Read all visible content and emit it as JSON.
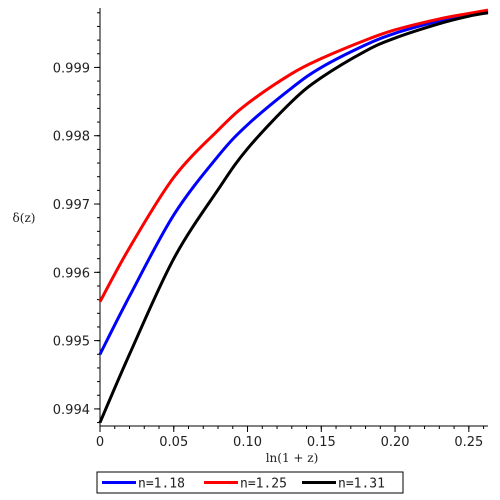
{
  "chart_data": {
    "type": "line",
    "xlabel": "ln(1 + z)",
    "ylabel": "δ(z)",
    "xlim": [
      0,
      0.263
    ],
    "ylim": [
      0.99375,
      0.99987
    ],
    "x_ticks": [
      0,
      0.05,
      0.1,
      0.15,
      0.2,
      0.25
    ],
    "x_tick_labels": [
      "0",
      "0.05",
      "0.10",
      "0.15",
      "0.20",
      "0.25"
    ],
    "y_ticks": [
      0.994,
      0.995,
      0.996,
      0.997,
      0.998,
      0.999
    ],
    "y_tick_labels": [
      "0.994",
      "0.995",
      "0.996",
      "0.997",
      "0.998",
      "0.999"
    ],
    "grid": false,
    "legend_position": "bottom",
    "series": [
      {
        "name": "n=1.18",
        "color": "#0000ff",
        "x": [
          0,
          0.02,
          0.05,
          0.08,
          0.1,
          0.13,
          0.15,
          0.18,
          0.2,
          0.23,
          0.25,
          0.263
        ],
        "y": [
          0.9948,
          0.99565,
          0.99684,
          0.9977,
          0.99816,
          0.9987,
          0.999,
          0.99933,
          0.9995,
          0.99968,
          0.99977,
          0.99982
        ]
      },
      {
        "name": "n=1.25",
        "color": "#ff0000",
        "x": [
          0,
          0.02,
          0.05,
          0.08,
          0.1,
          0.13,
          0.15,
          0.18,
          0.2,
          0.23,
          0.25,
          0.263
        ],
        "y": [
          0.99557,
          0.99636,
          0.99739,
          0.99808,
          0.99847,
          0.99891,
          0.99913,
          0.9994,
          0.99955,
          0.99971,
          0.99979,
          0.99984
        ]
      },
      {
        "name": "n=1.31",
        "color": "#000000",
        "x": [
          0,
          0.02,
          0.05,
          0.08,
          0.1,
          0.13,
          0.15,
          0.18,
          0.2,
          0.23,
          0.25,
          0.263
        ],
        "y": [
          0.9938,
          0.9948,
          0.9962,
          0.99721,
          0.99781,
          0.9985,
          0.99885,
          0.99924,
          0.99943,
          0.99964,
          0.99975,
          0.9998
        ]
      }
    ]
  }
}
